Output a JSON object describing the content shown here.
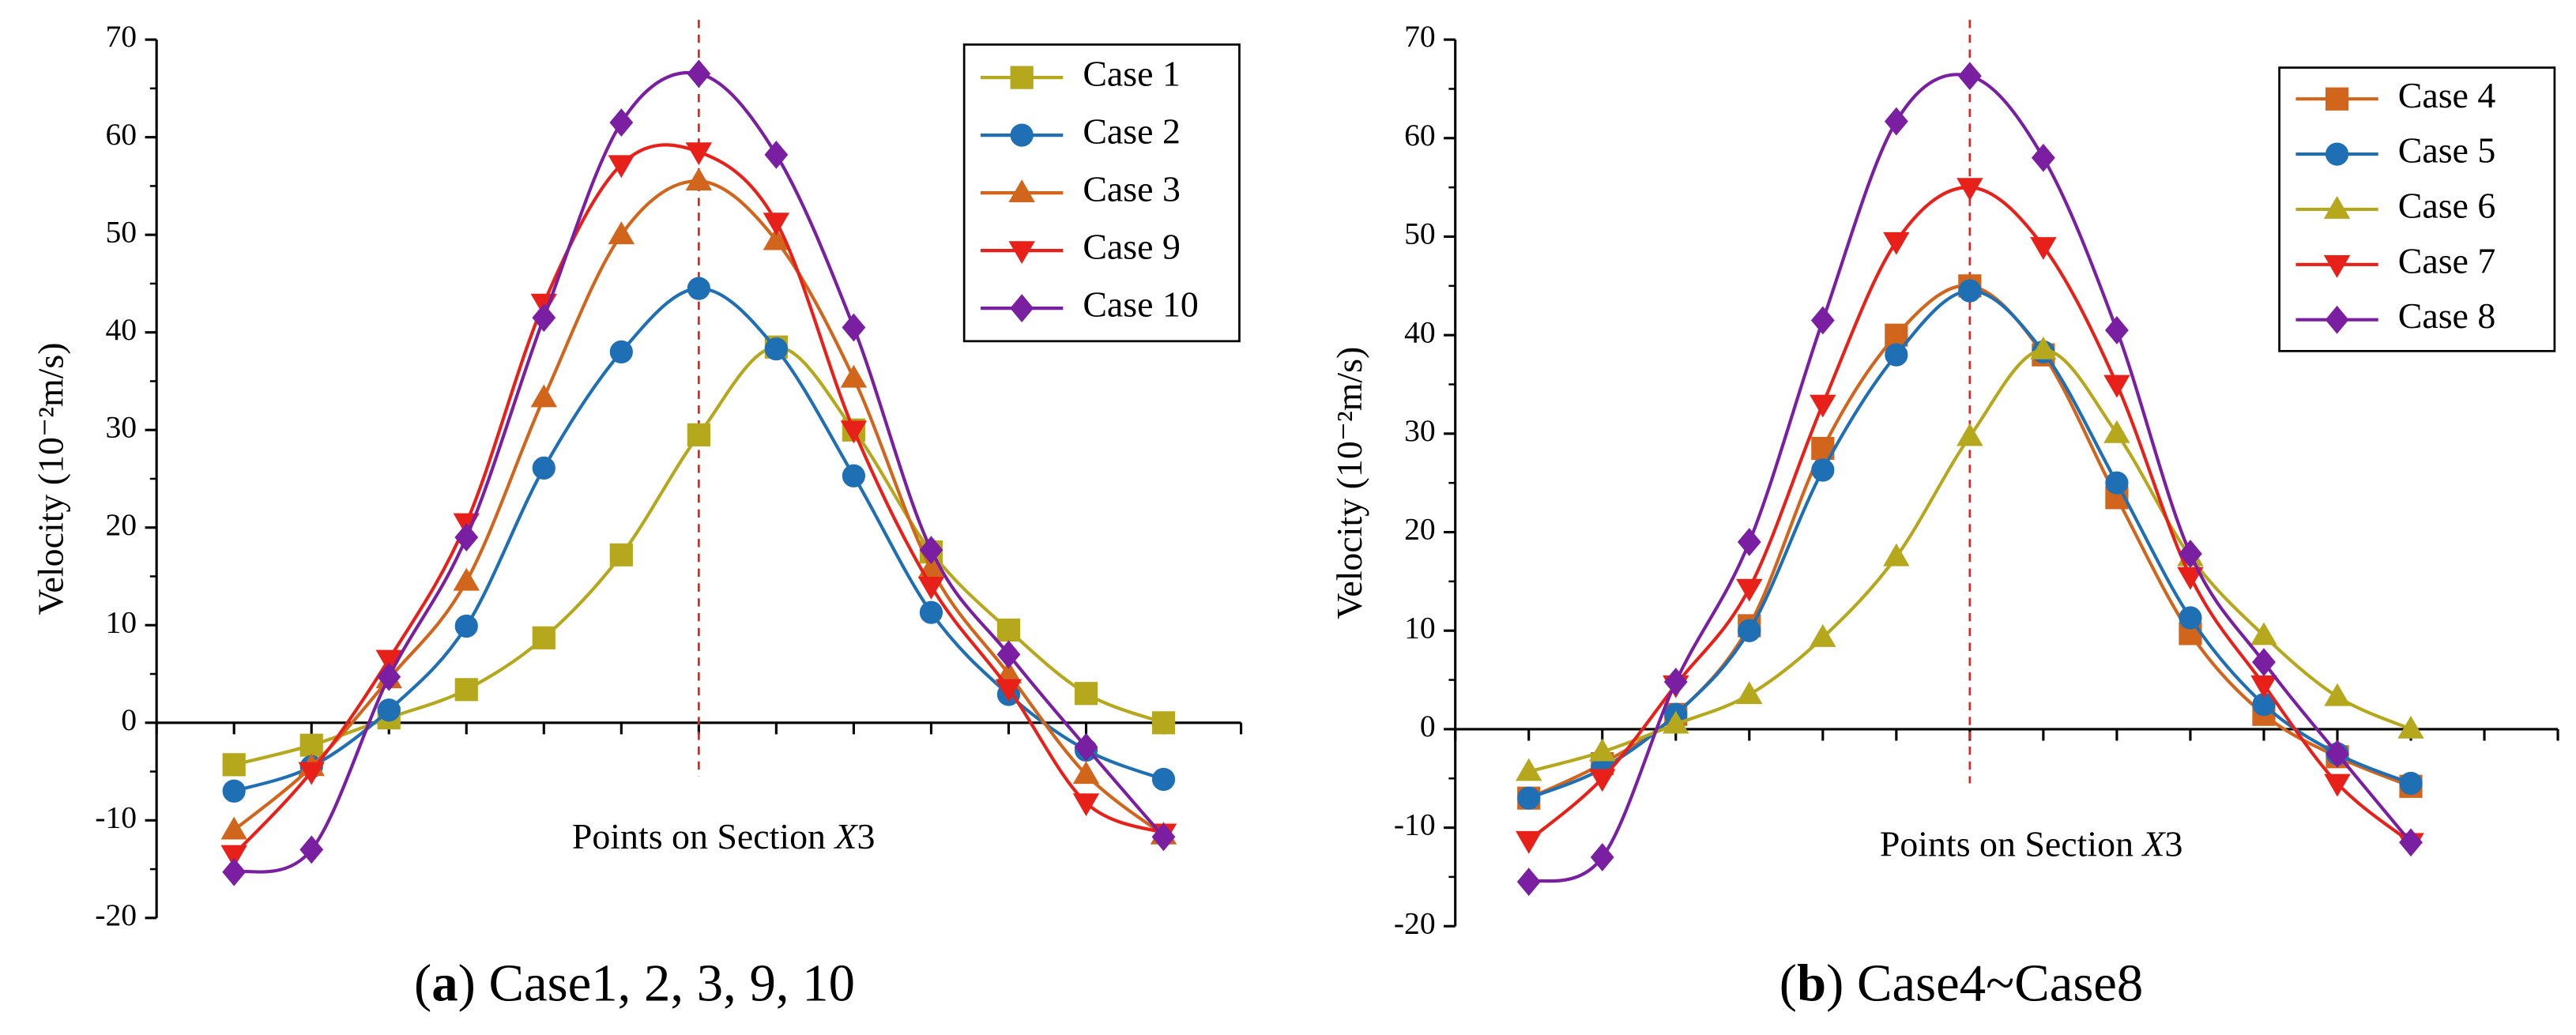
{
  "chart_data": [
    {
      "type": "line",
      "ylabel": "Velocity (10⁻²m/s)",
      "xlabel_parts": [
        "Points on Section ",
        "X",
        "3"
      ],
      "caption_parts": [
        "(",
        "a",
        ") Case1, 2, 3, 9, 10"
      ],
      "x": [
        1,
        2,
        3,
        4,
        5,
        6,
        7,
        8,
        9,
        10,
        11,
        12,
        13
      ],
      "xlim": [
        0,
        14
      ],
      "ylim": [
        -20,
        70
      ],
      "yticks": [
        -20,
        -10,
        0,
        10,
        20,
        30,
        40,
        50,
        60,
        70
      ],
      "vline_x": 7,
      "series": [
        {
          "name": "Case 1",
          "color": "#b5a81c",
          "marker": "square",
          "values": [
            -4.3,
            -2.3,
            0.5,
            3.4,
            8.7,
            17.2,
            29.5,
            38.5,
            30,
            17.5,
            9.5,
            3,
            0
          ]
        },
        {
          "name": "Case 2",
          "color": "#1f6fb5",
          "marker": "circle",
          "values": [
            -7,
            -4.5,
            1.3,
            9.9,
            26.1,
            38,
            44.5,
            38.3,
            25.3,
            11.3,
            2.9,
            -2.8,
            -5.8
          ]
        },
        {
          "name": "Case 3",
          "color": "#d2651c",
          "marker": "triangle",
          "values": [
            -11,
            -4.5,
            4.5,
            14.5,
            33.3,
            50,
            55.5,
            49.4,
            35.3,
            15.8,
            5,
            -5.3,
            -11.5
          ]
        },
        {
          "name": "Case 9",
          "color": "#e8201a",
          "marker": "triangle-down",
          "values": [
            -13.5,
            -5,
            6.5,
            20.5,
            43,
            57.2,
            58.5,
            51.3,
            30,
            14,
            3.5,
            -8.2,
            -11.3
          ]
        },
        {
          "name": "Case 10",
          "color": "#7b1fa2",
          "marker": "diamond",
          "values": [
            -15.3,
            -13,
            4.7,
            19,
            41.5,
            61.5,
            66.5,
            58.2,
            40.5,
            17.7,
            7,
            -2.5,
            -11.7
          ]
        }
      ]
    },
    {
      "type": "line",
      "ylabel": "Velocity (10⁻²m/s)",
      "xlabel_parts": [
        "Points on Section ",
        "X",
        "3"
      ],
      "caption_parts": [
        "(",
        "b",
        ") Case4~Case8"
      ],
      "x": [
        1,
        2,
        3,
        4,
        5,
        6,
        7,
        8,
        9,
        10,
        11,
        12,
        13
      ],
      "xlim": [
        0,
        15
      ],
      "ylim": [
        -20,
        70
      ],
      "yticks": [
        -20,
        -10,
        0,
        10,
        20,
        30,
        40,
        50,
        60,
        70
      ],
      "vline_x": 7,
      "series": [
        {
          "name": "Case 4",
          "color": "#d2651c",
          "marker": "square",
          "values": [
            -7,
            -3.5,
            1.5,
            10.5,
            28.5,
            40,
            45,
            38,
            23.5,
            9.7,
            1.5,
            -2.8,
            -5.8
          ]
        },
        {
          "name": "Case 5",
          "color": "#1f6fb5",
          "marker": "circle",
          "values": [
            -7,
            -4,
            1.5,
            10,
            26.3,
            38,
            44.5,
            38.3,
            25,
            11.3,
            2.5,
            -2.5,
            -5.5
          ]
        },
        {
          "name": "Case 6",
          "color": "#b5a81c",
          "marker": "triangle",
          "values": [
            -4.3,
            -2.3,
            0.5,
            3.5,
            9.3,
            17.5,
            29.7,
            38.5,
            30,
            17.5,
            9.5,
            3.3,
            0
          ]
        },
        {
          "name": "Case 7",
          "color": "#e8201a",
          "marker": "triangle-down",
          "values": [
            -11.3,
            -5,
            4.5,
            14.3,
            33,
            49.5,
            55,
            49,
            35,
            15.5,
            4.5,
            -5.5,
            -11.5
          ]
        },
        {
          "name": "Case 8",
          "color": "#7b1fa2",
          "marker": "diamond",
          "values": [
            -15.5,
            -13,
            4.8,
            19,
            41.5,
            61.7,
            66.3,
            58,
            40.5,
            17.8,
            6.8,
            -2.5,
            -11.5
          ]
        }
      ]
    }
  ]
}
